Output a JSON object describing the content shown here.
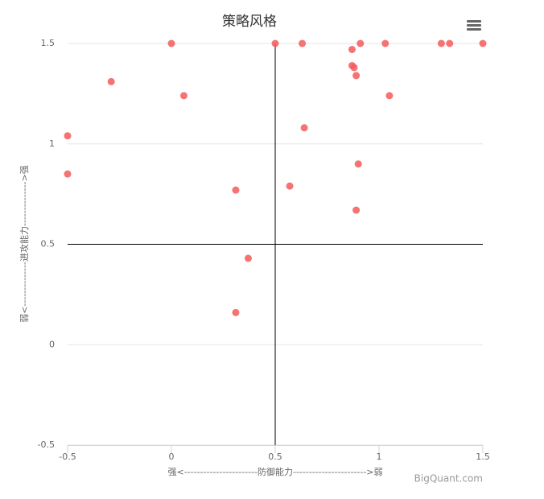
{
  "chart_data": {
    "type": "scatter",
    "title": "策略风格",
    "x_label": "强<-----------------------防御能力----------------------->弱",
    "y_label": "弱<--------------进攻能力-------------->强",
    "credits": "BigQuant.com",
    "color": "#f45b5b",
    "x": [
      0,
      0.5,
      0.63,
      0.91,
      1.03,
      1.3,
      1.34,
      1.5,
      0.87,
      0.87,
      0.88,
      0.89,
      -0.29,
      0.06,
      1.05,
      -0.5,
      0.64,
      0.9,
      -0.5,
      0.31,
      0.57,
      0.89,
      0.37,
      0.31
    ],
    "y": [
      1.5,
      1.5,
      1.5,
      1.5,
      1.5,
      1.5,
      1.5,
      1.5,
      1.47,
      1.39,
      1.38,
      1.34,
      1.31,
      1.24,
      1.24,
      1.04,
      1.08,
      0.9,
      0.85,
      0.77,
      0.79,
      0.67,
      0.43,
      0.16
    ],
    "xlim": [
      -0.5,
      1.5
    ],
    "xticks": [
      -0.5,
      0,
      0.5,
      1,
      1.5
    ],
    "ylim": [
      -0.5,
      1.5
    ],
    "yticks": [
      -0.5,
      0,
      0.5,
      1,
      1.5
    ],
    "x_plot_line": 0.5,
    "y_plot_line": 0.5,
    "grid": true
  }
}
